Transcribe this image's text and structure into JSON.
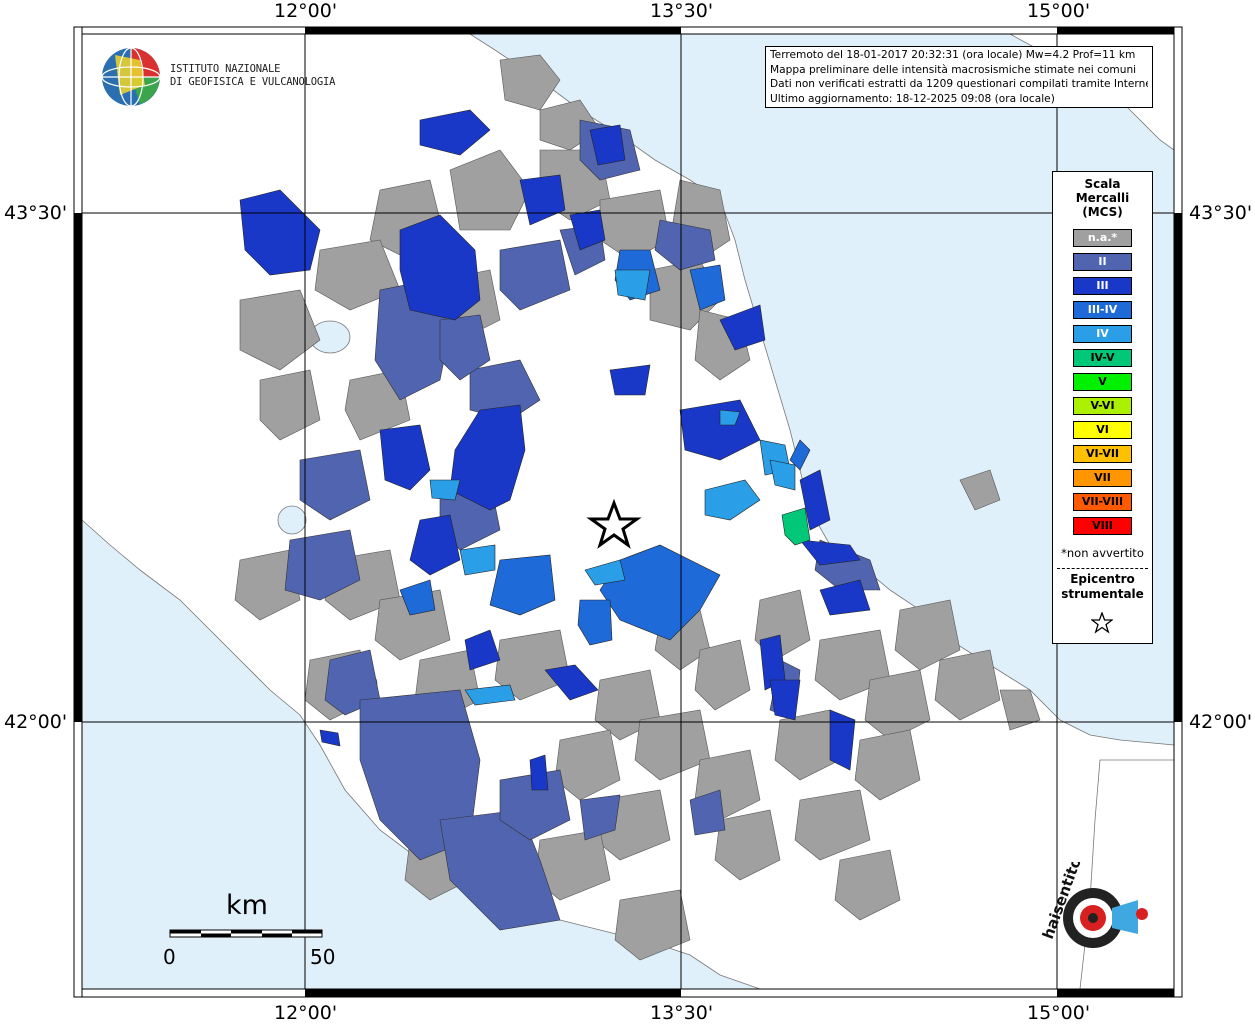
{
  "header": {
    "institute_line1": "ISTITUTO NAZIONALE",
    "institute_line2": "DI GEOFISICA E VULCANOLOGIA"
  },
  "info_box": {
    "line1": "Terremoto del 18-01-2017 20:32:31 (ora locale) Mw=4.2 Prof=11 km",
    "line2": "Mappa preliminare delle intensità macrosismiche stimate nei comuni",
    "line3": "Dati non verificati estratti da 1209 questionari compilati tramite Internet.",
    "line4": "Ultimo aggiornamento: 18-12-2025 09:08 (ora locale)"
  },
  "axes": {
    "lon_labels": [
      "12°00'",
      "13°30'",
      "15°00'"
    ],
    "lat_labels": [
      "43°30'",
      "42°00'"
    ]
  },
  "legend": {
    "title": [
      "Scala",
      "Mercalli",
      "(MCS)"
    ],
    "items": [
      {
        "label": "n.a.*",
        "color": "#a0a0a0",
        "text_color": "#ffffff"
      },
      {
        "label": "II",
        "color": "#5064b0",
        "text_color": "#ffffff"
      },
      {
        "label": "III",
        "color": "#1a38c8",
        "text_color": "#ffffff"
      },
      {
        "label": "III-IV",
        "color": "#1e6ad8",
        "text_color": "#ffffff"
      },
      {
        "label": "IV",
        "color": "#2a9ee6",
        "text_color": "#ffffff"
      },
      {
        "label": "IV-V",
        "color": "#00c878",
        "text_color": "#000000"
      },
      {
        "label": "V",
        "color": "#00f000",
        "text_color": "#000000"
      },
      {
        "label": "V-VI",
        "color": "#aaf000",
        "text_color": "#000000"
      },
      {
        "label": "VI",
        "color": "#ffff00",
        "text_color": "#000000"
      },
      {
        "label": "VI-VII",
        "color": "#ffc000",
        "text_color": "#000000"
      },
      {
        "label": "VII",
        "color": "#ff9600",
        "text_color": "#000000"
      },
      {
        "label": "VII-VIII",
        "color": "#ff5a00",
        "text_color": "#000000"
      },
      {
        "label": "VIII",
        "color": "#ff0000",
        "text_color": "#000000"
      }
    ],
    "note": "*non avvertito",
    "epicenter_line1": "Epicentro",
    "epicenter_line2": "strumentale"
  },
  "scale_bar": {
    "unit": "km",
    "min_label": "0",
    "max_label": "50"
  },
  "colors": {
    "sea": "#dff0fb",
    "land": "#ffffff",
    "na": "#a0a0a0",
    "II": "#5064b0",
    "III": "#1a38c8",
    "III_IV": "#1e6ad8",
    "IV": "#2a9ee6",
    "IV_V": "#00c878"
  },
  "logos": {
    "ingv": "ingv-globe-logo",
    "hsit": "haisentito-logo"
  },
  "hsit_logo_text": "haisentitoilterremoto.it"
}
